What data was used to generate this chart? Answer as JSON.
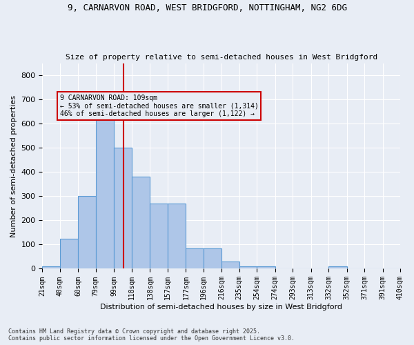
{
  "title_line1": "9, CARNARVON ROAD, WEST BRIDGFORD, NOTTINGHAM, NG2 6DG",
  "title_line2": "Size of property relative to semi-detached houses in West Bridgford",
  "xlabel": "Distribution of semi-detached houses by size in West Bridgford",
  "ylabel": "Number of semi-detached properties",
  "footnote": "Contains HM Land Registry data © Crown copyright and database right 2025.\nContains public sector information licensed under the Open Government Licence v3.0.",
  "bin_labels": [
    "21sqm",
    "40sqm",
    "60sqm",
    "79sqm",
    "99sqm",
    "118sqm",
    "138sqm",
    "157sqm",
    "177sqm",
    "196sqm",
    "216sqm",
    "235sqm",
    "254sqm",
    "274sqm",
    "293sqm",
    "313sqm",
    "332sqm",
    "352sqm",
    "371sqm",
    "391sqm",
    "410sqm"
  ],
  "bin_edges": [
    21,
    40,
    60,
    79,
    99,
    118,
    138,
    157,
    177,
    196,
    216,
    235,
    254,
    274,
    293,
    313,
    332,
    352,
    371,
    391,
    410
  ],
  "bar_heights": [
    10,
    125,
    300,
    630,
    500,
    380,
    270,
    270,
    85,
    85,
    30,
    10,
    10,
    0,
    0,
    0,
    10,
    0,
    0,
    0
  ],
  "property_size": 109,
  "property_label": "9 CARNARVON ROAD: 109sqm",
  "pct_smaller": 53,
  "n_smaller": 1314,
  "pct_larger": 46,
  "n_larger": 1122,
  "bar_color": "#aec6e8",
  "bar_edge_color": "#5b9bd5",
  "vline_color": "#cc0000",
  "annotation_box_color": "#cc0000",
  "background_color": "#e8edf5",
  "grid_color": "#ffffff",
  "ylim": [
    0,
    850
  ],
  "yticks": [
    0,
    100,
    200,
    300,
    400,
    500,
    600,
    700,
    800
  ]
}
